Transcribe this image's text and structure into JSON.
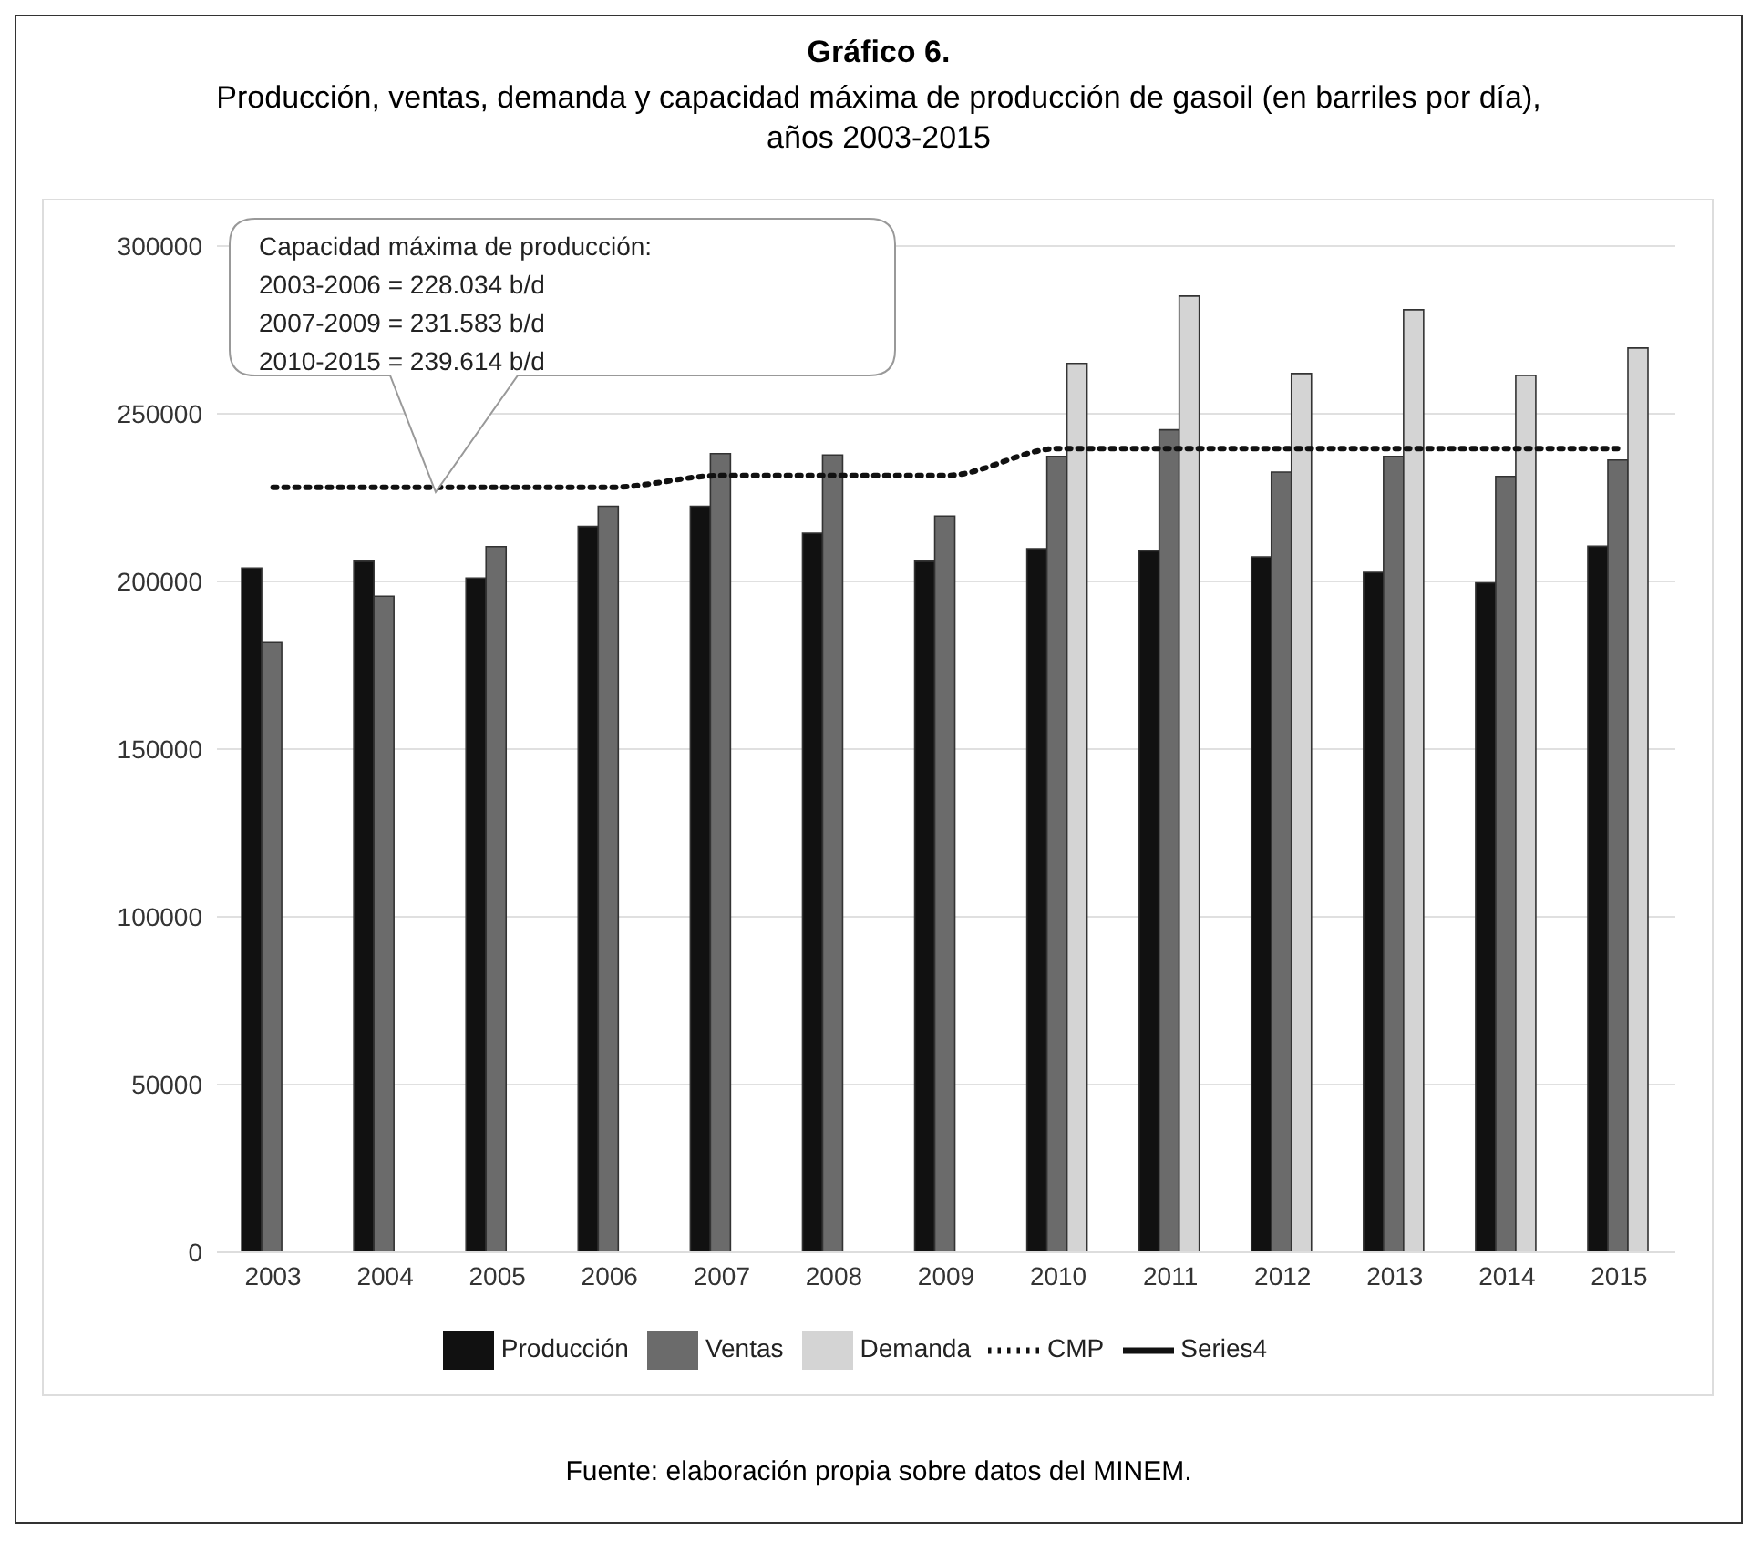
{
  "chart_data": {
    "type": "bar",
    "title": "Gráfico 6.",
    "subtitle": "Producción, ventas, demanda y capacidad máxima de producción de gasoil (en barriles por día), años 2003-2015",
    "categories": [
      "2003",
      "2004",
      "2005",
      "2006",
      "2007",
      "2008",
      "2009",
      "2010",
      "2011",
      "2012",
      "2013",
      "2014",
      "2015"
    ],
    "series": [
      {
        "name": "Producción",
        "color": "#111111",
        "values": [
          204000,
          206000,
          201000,
          216400,
          222400,
          214400,
          206000,
          209800,
          209100,
          207300,
          202700,
          199600,
          210500
        ]
      },
      {
        "name": "Ventas",
        "color": "#6b6b6b",
        "values": [
          182000,
          195600,
          210400,
          222400,
          238100,
          237700,
          219500,
          237300,
          245200,
          232600,
          237300,
          231300,
          236200
        ]
      },
      {
        "name": "Demanda",
        "color": "#d4d4d4",
        "values": [
          null,
          null,
          null,
          null,
          null,
          null,
          null,
          265000,
          285100,
          262000,
          281000,
          261400,
          269600
        ]
      },
      {
        "name": "CMP",
        "type": "line",
        "color": "#111111",
        "line_style": "dotted",
        "values": [
          228034,
          228034,
          228034,
          228034,
          231583,
          231583,
          231583,
          239614,
          239614,
          239614,
          239614,
          239614,
          239614
        ]
      },
      {
        "name": "Series4",
        "type": "line",
        "color": "#111111",
        "line_style": "solid",
        "values": [
          null,
          null,
          null,
          null,
          null,
          null,
          null,
          null,
          null,
          null,
          null,
          null,
          null
        ]
      }
    ],
    "ylim": [
      0,
      300000
    ],
    "yticks": [
      0,
      50000,
      100000,
      150000,
      200000,
      250000,
      300000
    ],
    "grid": "y",
    "legend": "bottom",
    "marker": "none",
    "annotations": [
      "Capacidad máxima de producción:\n2003-2006 = 228.034 b/d\n2007-2009 = 231.583 b/d\n2010-2015 = 239.614 b/d",
      "Fuente: elaboración propia sobre datos del MINEM."
    ]
  }
}
